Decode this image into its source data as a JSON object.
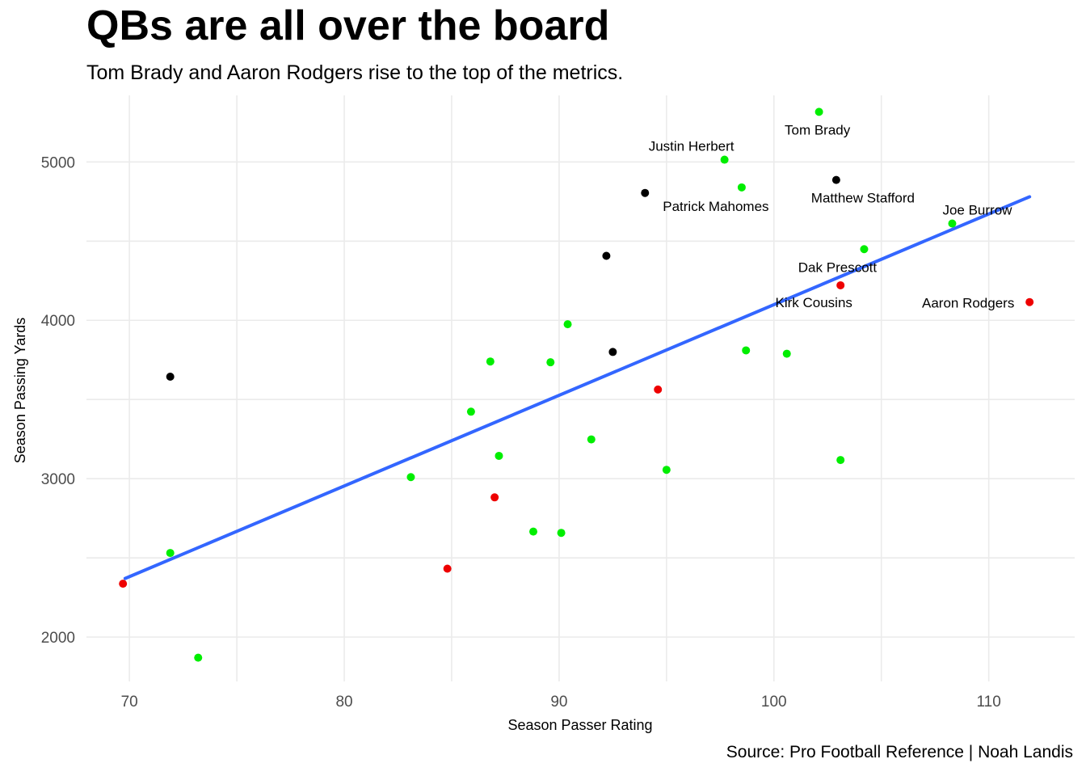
{
  "chart_data": {
    "type": "scatter",
    "title": "QBs are all over the board",
    "subtitle": "Tom Brady and Aaron Rodgers rise to the top of the metrics.",
    "caption": "Source: Pro Football Reference | Noah Landis",
    "xlabel": "Season Passer Rating",
    "ylabel": "Season Passing Yards",
    "xlim": [
      68,
      114
    ],
    "ylim": [
      1720,
      5420
    ],
    "x_ticks": [
      70,
      80,
      90,
      100,
      110
    ],
    "y_ticks": [
      2000,
      3000,
      4000,
      5000
    ],
    "grid": true,
    "trend_line": {
      "method": "linear",
      "color": "#3366ff",
      "x": [
        69.8,
        111.9
      ],
      "y": [
        2370,
        4780
      ]
    },
    "colors": {
      "green": "#00ee00",
      "black": "#000000",
      "red": "#ee0000"
    },
    "points": [
      {
        "x": 102.1,
        "y": 5316,
        "color": "green",
        "label": "Tom Brady"
      },
      {
        "x": 97.7,
        "y": 5014,
        "color": "green",
        "label": "Justin Herbert"
      },
      {
        "x": 98.5,
        "y": 4839,
        "color": "green",
        "label": "Patrick Mahomes"
      },
      {
        "x": 102.9,
        "y": 4886,
        "color": "black",
        "label": "Matthew Stafford"
      },
      {
        "x": 108.3,
        "y": 4611,
        "color": "green",
        "label": "Joe Burrow"
      },
      {
        "x": 104.2,
        "y": 4449,
        "color": "green",
        "label": "Dak Prescott"
      },
      {
        "x": 103.1,
        "y": 4221,
        "color": "red",
        "label": "Kirk Cousins"
      },
      {
        "x": 111.9,
        "y": 4115,
        "color": "red",
        "label": "Aaron Rodgers"
      },
      {
        "x": 94.0,
        "y": 4804,
        "color": "black"
      },
      {
        "x": 92.2,
        "y": 4407,
        "color": "black"
      },
      {
        "x": 92.5,
        "y": 3800,
        "color": "black"
      },
      {
        "x": 71.9,
        "y": 3644,
        "color": "black"
      },
      {
        "x": 90.4,
        "y": 3975,
        "color": "green"
      },
      {
        "x": 98.7,
        "y": 3810,
        "color": "green"
      },
      {
        "x": 100.6,
        "y": 3789,
        "color": "green"
      },
      {
        "x": 86.8,
        "y": 3740,
        "color": "green"
      },
      {
        "x": 89.6,
        "y": 3735,
        "color": "green"
      },
      {
        "x": 94.6,
        "y": 3563,
        "color": "red"
      },
      {
        "x": 85.9,
        "y": 3423,
        "color": "green"
      },
      {
        "x": 91.5,
        "y": 3248,
        "color": "green"
      },
      {
        "x": 87.2,
        "y": 3144,
        "color": "green"
      },
      {
        "x": 103.1,
        "y": 3118,
        "color": "green"
      },
      {
        "x": 95.0,
        "y": 3056,
        "color": "green"
      },
      {
        "x": 83.1,
        "y": 3010,
        "color": "green"
      },
      {
        "x": 87.0,
        "y": 2882,
        "color": "red"
      },
      {
        "x": 88.8,
        "y": 2666,
        "color": "green"
      },
      {
        "x": 90.1,
        "y": 2658,
        "color": "green"
      },
      {
        "x": 84.8,
        "y": 2432,
        "color": "red"
      },
      {
        "x": 71.9,
        "y": 2531,
        "color": "green"
      },
      {
        "x": 69.7,
        "y": 2337,
        "color": "red"
      },
      {
        "x": 73.2,
        "y": 1870,
        "color": "green"
      }
    ]
  }
}
